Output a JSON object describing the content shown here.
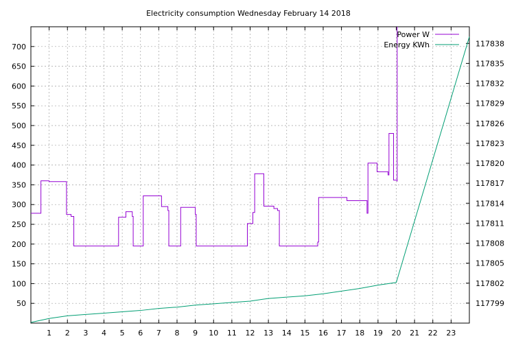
{
  "chart_data": {
    "type": "line",
    "title": "Electricity consumption Wednesday February 14 2018",
    "xlabel": "",
    "ylabel": "",
    "y2label": "",
    "xlim": [
      0,
      24
    ],
    "ylim": [
      0,
      750
    ],
    "y2lim": [
      117796,
      117840.5
    ],
    "x_ticks": [
      1,
      2,
      3,
      4,
      5,
      6,
      7,
      8,
      9,
      10,
      11,
      12,
      13,
      14,
      15,
      16,
      17,
      18,
      19,
      20,
      21,
      22,
      23
    ],
    "x_tick_labels": [
      "1",
      "2",
      "3",
      "4",
      "5",
      "6",
      "7",
      "8",
      "9",
      "10",
      "11",
      "12",
      "13",
      "14",
      "15",
      "16",
      "17",
      "18",
      "19",
      "20",
      "21",
      "22",
      "23"
    ],
    "y_ticks": [
      50,
      100,
      150,
      200,
      250,
      300,
      350,
      400,
      450,
      500,
      550,
      600,
      650,
      700
    ],
    "y_tick_labels": [
      "50",
      "100",
      "150",
      "200",
      "250",
      "300",
      "350",
      "400",
      "450",
      "500",
      "550",
      "600",
      "650",
      "700"
    ],
    "y2_ticks": [
      117799,
      117802,
      117805,
      117808,
      117811,
      117814,
      117817,
      117820,
      117823,
      117826,
      117829,
      117832,
      117835,
      117838
    ],
    "y2_tick_labels": [
      "117799",
      "117802",
      "117805",
      "117808",
      "117811",
      "117814",
      "117817",
      "117820",
      "117823",
      "117826",
      "117829",
      "117832",
      "117835",
      "117838"
    ],
    "grid": true,
    "legend_position": "top-right",
    "series": [
      {
        "name": "Power W",
        "axis": "left",
        "color": "#9400d3",
        "step": true,
        "points": [
          [
            0.0,
            278
          ],
          [
            0.55,
            278
          ],
          [
            0.55,
            360
          ],
          [
            1.0,
            360
          ],
          [
            1.0,
            358
          ],
          [
            1.95,
            358
          ],
          [
            1.95,
            275
          ],
          [
            2.2,
            275
          ],
          [
            2.2,
            270
          ],
          [
            2.35,
            270
          ],
          [
            2.35,
            195
          ],
          [
            4.8,
            195
          ],
          [
            4.8,
            268
          ],
          [
            5.2,
            268
          ],
          [
            5.2,
            282
          ],
          [
            5.55,
            282
          ],
          [
            5.55,
            270
          ],
          [
            5.6,
            270
          ],
          [
            5.6,
            195
          ],
          [
            6.15,
            195
          ],
          [
            6.15,
            322
          ],
          [
            7.15,
            322
          ],
          [
            7.15,
            295
          ],
          [
            7.5,
            295
          ],
          [
            7.5,
            285
          ],
          [
            7.55,
            285
          ],
          [
            7.55,
            195
          ],
          [
            8.2,
            195
          ],
          [
            8.2,
            293
          ],
          [
            9.0,
            293
          ],
          [
            9.0,
            275
          ],
          [
            9.05,
            275
          ],
          [
            9.05,
            195
          ],
          [
            11.85,
            195
          ],
          [
            11.85,
            252
          ],
          [
            12.15,
            252
          ],
          [
            12.15,
            280
          ],
          [
            12.25,
            280
          ],
          [
            12.25,
            378
          ],
          [
            12.75,
            378
          ],
          [
            12.75,
            296
          ],
          [
            13.3,
            296
          ],
          [
            13.3,
            290
          ],
          [
            13.5,
            290
          ],
          [
            13.5,
            285
          ],
          [
            13.6,
            285
          ],
          [
            13.6,
            195
          ],
          [
            15.7,
            195
          ],
          [
            15.7,
            205
          ],
          [
            15.75,
            205
          ],
          [
            15.75,
            318
          ],
          [
            17.3,
            318
          ],
          [
            17.3,
            310
          ],
          [
            18.4,
            310
          ],
          [
            18.4,
            278
          ],
          [
            18.45,
            278
          ],
          [
            18.45,
            405
          ],
          [
            18.95,
            405
          ],
          [
            18.95,
            383
          ],
          [
            19.55,
            383
          ],
          [
            19.55,
            375
          ],
          [
            19.6,
            375
          ],
          [
            19.6,
            480
          ],
          [
            19.85,
            480
          ],
          [
            19.85,
            362
          ],
          [
            20.05,
            362
          ],
          [
            20.05,
            358
          ],
          [
            20.05,
            750
          ]
        ]
      },
      {
        "name": "Energy KWh",
        "axis": "right",
        "color": "#009e73",
        "step": false,
        "points": [
          [
            0.0,
            117796.1
          ],
          [
            1.0,
            117796.7
          ],
          [
            2.0,
            117797.1
          ],
          [
            3.0,
            117797.3
          ],
          [
            4.0,
            117797.5
          ],
          [
            5.0,
            117797.7
          ],
          [
            6.0,
            117797.9
          ],
          [
            7.0,
            117798.2
          ],
          [
            8.0,
            117798.4
          ],
          [
            9.0,
            117798.7
          ],
          [
            10.0,
            117798.9
          ],
          [
            11.0,
            117799.1
          ],
          [
            12.0,
            117799.3
          ],
          [
            13.0,
            117799.7
          ],
          [
            14.0,
            117799.9
          ],
          [
            15.0,
            117800.1
          ],
          [
            16.0,
            117800.4
          ],
          [
            17.0,
            117800.8
          ],
          [
            18.0,
            117801.2
          ],
          [
            19.0,
            117801.7
          ],
          [
            20.0,
            117802.1
          ],
          [
            24.0,
            117839.0
          ]
        ]
      }
    ]
  }
}
